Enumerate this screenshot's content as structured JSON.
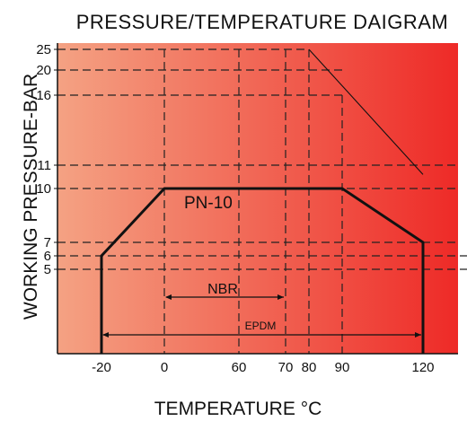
{
  "chart_data": {
    "type": "line",
    "title": "PRESSURE/TEMPERATURE DAIGRAM",
    "xlabel": "TEMPERATURE °C",
    "ylabel": "WORKING PRESSURE-BAR",
    "x_ticks": [
      "-20",
      "0",
      "60",
      "70",
      "80",
      "90",
      "120"
    ],
    "y_ticks": [
      "25",
      "20",
      "16",
      "11",
      "10",
      "7",
      "6",
      "5"
    ],
    "series": [
      {
        "name": "PN-10",
        "points": [
          {
            "x": "-20",
            "y": 0
          },
          {
            "x": "-20",
            "y": 6
          },
          {
            "x": "0",
            "y": 10
          },
          {
            "x": "90",
            "y": 10
          },
          {
            "x": "120",
            "y": 7
          },
          {
            "x": "120",
            "y": 0
          }
        ]
      },
      {
        "name": "",
        "points": [
          {
            "x": "80",
            "y": 25
          },
          {
            "x": "120",
            "y": 10.6
          }
        ]
      }
    ],
    "annotations": {
      "pn10": "PN-10",
      "nbr": "NBR",
      "nbr_range": [
        "0",
        "70"
      ],
      "epdm": "EPDM",
      "epdm_range": [
        "-20",
        "120"
      ]
    },
    "background_gradient": [
      "#f4a283",
      "#ee2a27"
    ],
    "grid": "dashed"
  }
}
